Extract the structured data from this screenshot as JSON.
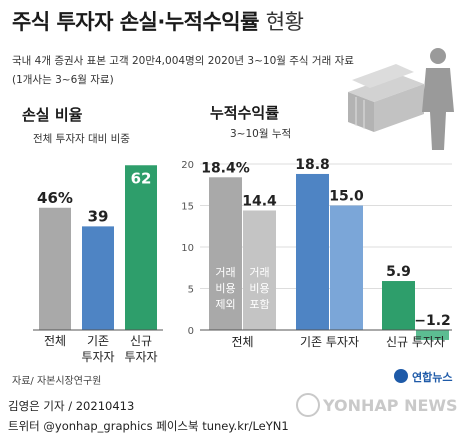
{
  "header": {
    "title": "주식 투자자 손실·누적수익률",
    "title_suffix": "현황",
    "subtitle_line1": "국내 4개 증권사 표본 고객 20만4,004명의 2020년 3~10월 주식 거래 자료",
    "subtitle_line2": "(1개사는 3~6월 자료)"
  },
  "chart_data": [
    {
      "type": "bar",
      "title": "손실 비율",
      "subtitle": "전체 투자자 대비 비중",
      "categories": [
        "전체",
        "기존 투자자",
        "신규 투자자"
      ],
      "category_lines": [
        [
          "전체"
        ],
        [
          "기존",
          "투자자"
        ],
        [
          "신규",
          "투자자"
        ]
      ],
      "values": [
        46,
        39,
        62
      ],
      "value_labels": [
        "46%",
        "39",
        "62"
      ],
      "colors": [
        "#a9a9a9",
        "#4e84c4",
        "#2e9e6b"
      ],
      "ylim": [
        0,
        70
      ]
    },
    {
      "type": "bar",
      "title": "누적수익률",
      "subtitle": "3~10월 누적",
      "categories": [
        "전체",
        "기존 투자자",
        "신규 투자자"
      ],
      "series": [
        {
          "name": "거래비용 제외",
          "name_lines": [
            "거래",
            "비용",
            "제외"
          ],
          "values": [
            18.4,
            18.8,
            5.9
          ]
        },
        {
          "name": "거래비용 포함",
          "name_lines": [
            "거래",
            "비용",
            "포함"
          ],
          "values": [
            14.4,
            15.0,
            -1.2
          ]
        }
      ],
      "value_labels": [
        [
          "18.4%",
          "14.4"
        ],
        [
          "18.8",
          "15.0"
        ],
        [
          "5.9",
          "−1.2"
        ]
      ],
      "group_colors": [
        [
          "#a9a9a9",
          "#c4c4c4"
        ],
        [
          "#4e84c4",
          "#7ba6d8"
        ],
        [
          "#2e9e6b",
          "#5cbd92"
        ]
      ],
      "yticks": [
        0,
        5,
        10,
        15,
        20
      ],
      "ylim": [
        -2,
        21
      ],
      "grid": true
    }
  ],
  "footer": {
    "source": "자료/ 자본시장연구원",
    "logo": "연합뉴스",
    "author": "김영은 기자 / 20210413",
    "social": "트위터 @yonhap_graphics  페이스북 tuney.kr/LeYN1",
    "watermark": "YONHAP NEWS"
  }
}
